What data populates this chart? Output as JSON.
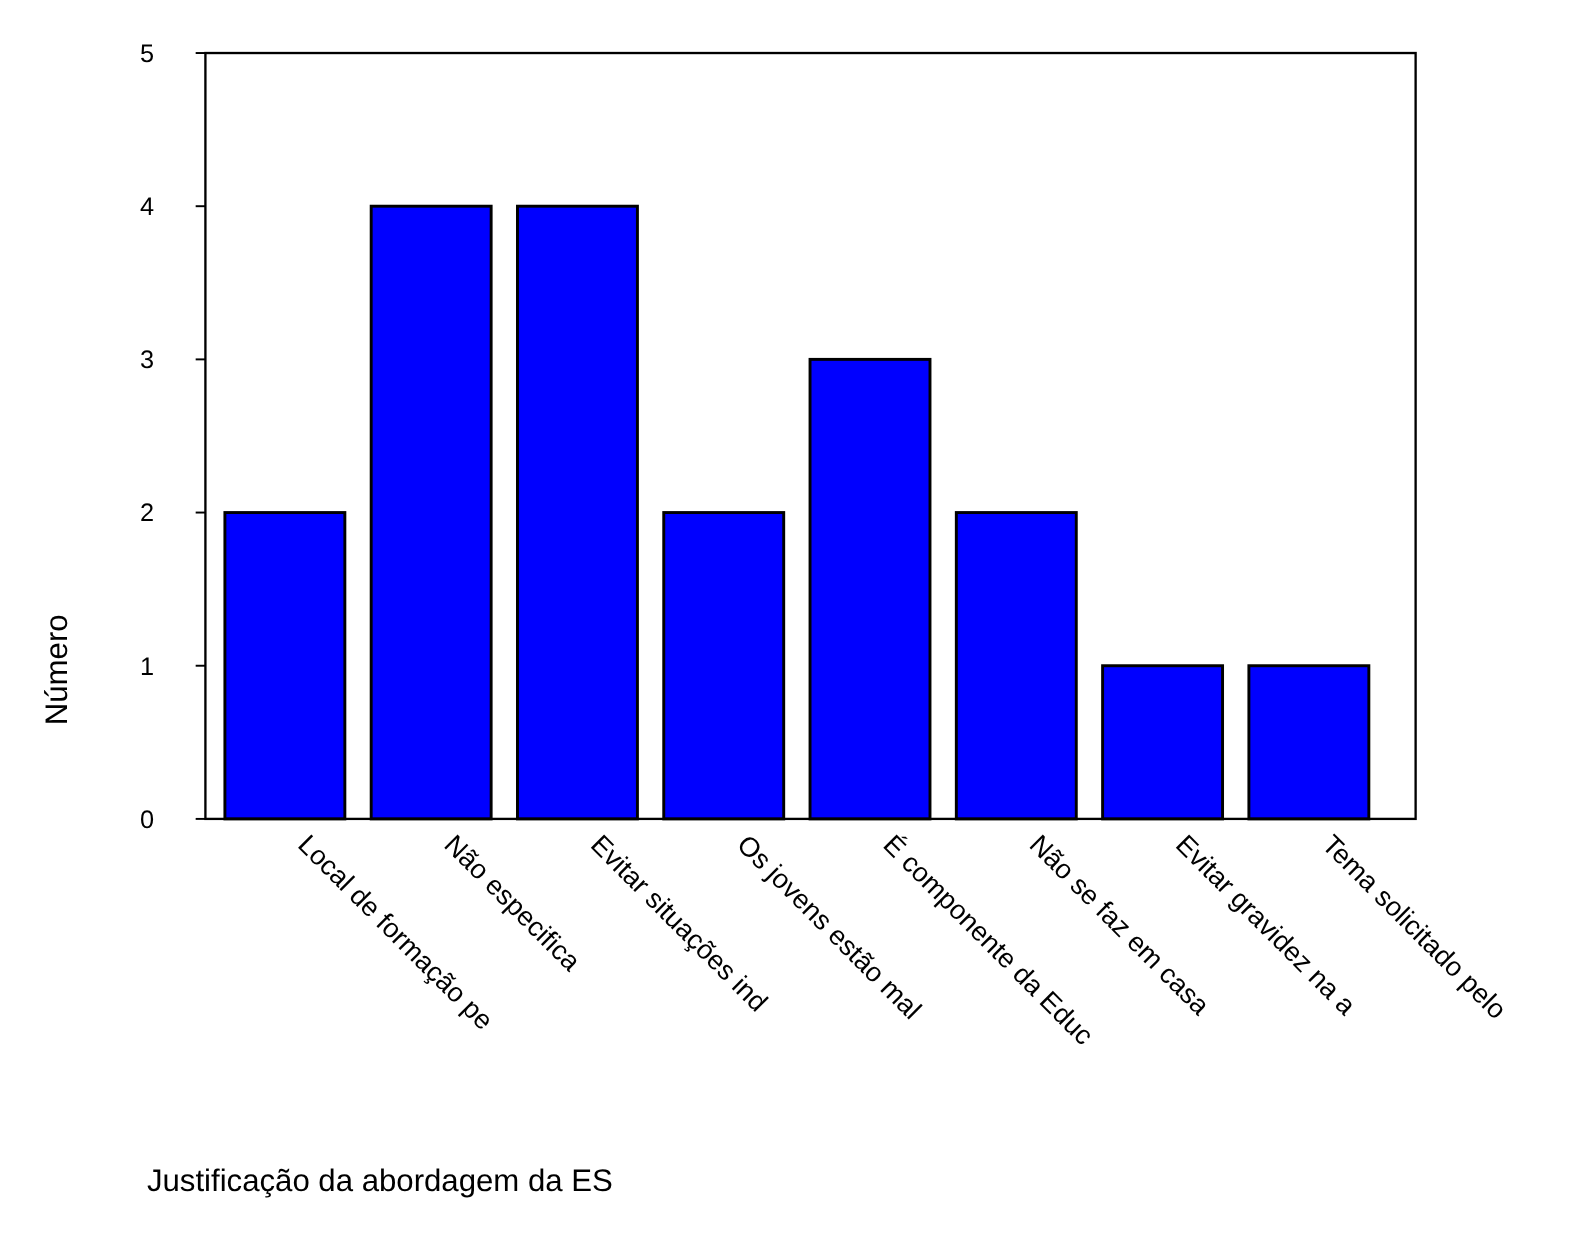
{
  "chart_data": {
    "type": "bar",
    "xlabel": "Justificação da abordagem da ES",
    "ylabel": "Número",
    "categories": [
      "Local de formação pe",
      "Não especifica",
      "Evitar situações ind",
      "Os jovens estão mal",
      "É componente da Educ",
      "Não se faz em casa",
      "Evitar gravidez na a",
      "Tema solicitado pelo"
    ],
    "values": [
      2,
      4,
      4,
      2,
      3,
      2,
      1,
      1
    ],
    "color": "#0000ff",
    "ylim": [
      0,
      5
    ],
    "yticks": [
      0,
      1,
      2,
      3,
      4,
      5
    ]
  }
}
